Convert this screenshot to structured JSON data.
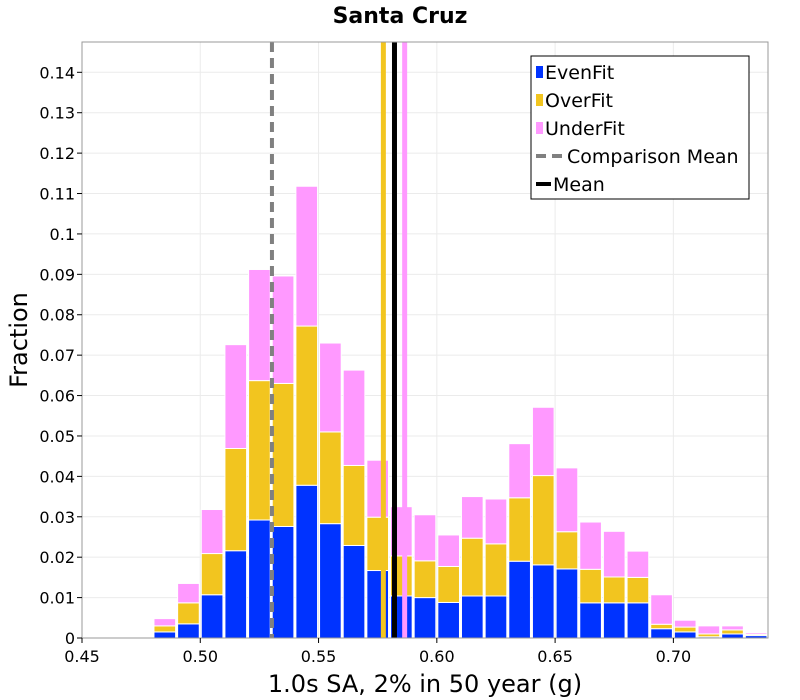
{
  "chart_data": {
    "type": "bar",
    "stacked": true,
    "title": "Santa Cruz",
    "xlabel": "1.0s SA, 2% in 50 year (g)",
    "ylabel": "Fraction",
    "xlim": [
      0.45,
      0.74
    ],
    "ylim": [
      0,
      0.1475
    ],
    "bin_width": 0.01,
    "grid": true,
    "legend_position": "top-right",
    "x_ticks": [
      0.45,
      0.5,
      0.55,
      0.6,
      0.65,
      0.7
    ],
    "x_tick_labels": [
      "0.45",
      "0.50",
      "0.55",
      "0.60",
      "0.65",
      "0.70"
    ],
    "y_ticks": [
      0,
      0.01,
      0.02,
      0.03,
      0.04,
      0.05,
      0.06,
      0.07,
      0.08,
      0.09,
      0.1,
      0.11,
      0.12,
      0.13,
      0.14
    ],
    "y_tick_labels": [
      "0",
      "0.01",
      "0.02",
      "0.03",
      "0.04",
      "0.05",
      "0.06",
      "0.07",
      "0.08",
      "0.09",
      "0.1",
      "0.11",
      "0.12",
      "0.13",
      "0.14"
    ],
    "bin_starts": [
      0.48,
      0.49,
      0.5,
      0.51,
      0.52,
      0.53,
      0.54,
      0.55,
      0.56,
      0.57,
      0.58,
      0.59,
      0.6,
      0.61,
      0.62,
      0.63,
      0.64,
      0.65,
      0.66,
      0.67,
      0.68,
      0.69,
      0.7,
      0.71,
      0.72,
      0.73
    ],
    "series": [
      {
        "name": "EvenFit",
        "color": "#0033ff",
        "values": [
          0.0015,
          0.0035,
          0.0107,
          0.0216,
          0.0292,
          0.0276,
          0.0378,
          0.0283,
          0.0229,
          0.0167,
          0.0104,
          0.01,
          0.0088,
          0.0104,
          0.0104,
          0.019,
          0.0181,
          0.0171,
          0.0087,
          0.0087,
          0.0087,
          0.0023,
          0.0015,
          0.0003,
          0.001,
          0.0006
        ]
      },
      {
        "name": "OverFit",
        "color": "#f2c51f",
        "values": [
          0.0015,
          0.0052,
          0.0102,
          0.0253,
          0.0345,
          0.0354,
          0.0394,
          0.0227,
          0.0198,
          0.0132,
          0.0099,
          0.0091,
          0.0089,
          0.0143,
          0.0129,
          0.0157,
          0.0221,
          0.0092,
          0.0083,
          0.0064,
          0.0063,
          0.0011,
          0.0012,
          0.0007,
          0.001,
          0.0003
        ]
      },
      {
        "name": "UnderFit",
        "color": "#ff99ff",
        "values": [
          0.0018,
          0.0048,
          0.0109,
          0.0257,
          0.0275,
          0.0266,
          0.0346,
          0.022,
          0.0236,
          0.0141,
          0.0122,
          0.0114,
          0.0078,
          0.0103,
          0.0111,
          0.0134,
          0.0169,
          0.0158,
          0.0117,
          0.0113,
          0.0065,
          0.0073,
          0.0017,
          0.002,
          0.001,
          0.0004
        ]
      }
    ],
    "lines": [
      {
        "name": "Comparison Mean",
        "x": 0.5303,
        "color": "#808080",
        "style": "dashed"
      },
      {
        "name": "OverFit Mean",
        "x": 0.5774,
        "color": "#f2c51f",
        "style": "solid"
      },
      {
        "name": "Mean",
        "x": 0.5821,
        "color": "#000000",
        "style": "solid"
      },
      {
        "name": "UnderFit Mean",
        "x": 0.5864,
        "color": "#ff99ff",
        "style": "solid"
      }
    ],
    "legend": [
      {
        "label": "EvenFit",
        "kind": "box",
        "color": "#0033ff"
      },
      {
        "label": "OverFit",
        "kind": "box",
        "color": "#f2c51f"
      },
      {
        "label": "UnderFit",
        "kind": "box",
        "color": "#ff99ff"
      },
      {
        "label": "Comparison Mean",
        "kind": "dash",
        "color": "#808080"
      },
      {
        "label": "Mean",
        "kind": "line",
        "color": "#000000"
      }
    ]
  }
}
